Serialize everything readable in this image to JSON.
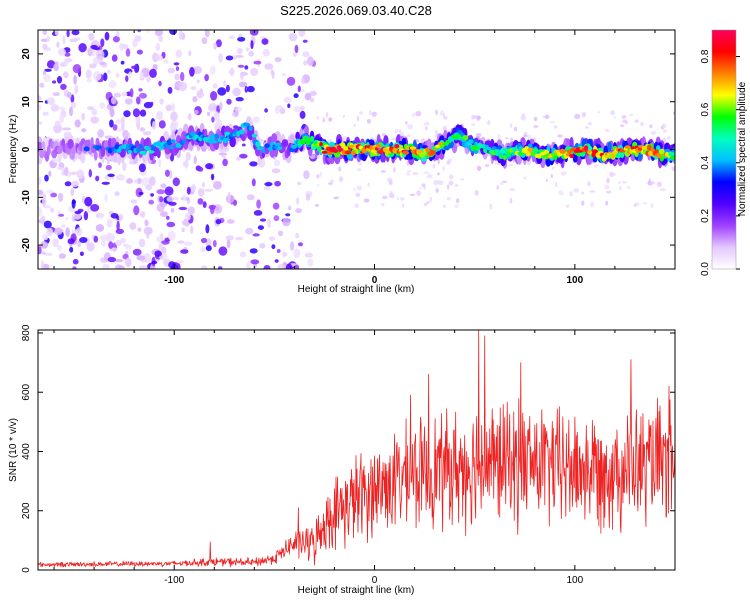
{
  "title": "S225.2026.069.03.40.C28",
  "chart_data": [
    {
      "type": "heatmap",
      "xlabel": "Height of straight line (km)",
      "ylabel": "Frequency (Hz)",
      "xlim": [
        -168,
        150
      ],
      "ylim": [
        -25,
        25
      ],
      "xticks": [
        -100,
        0,
        100
      ],
      "yticks": [
        -20,
        -10,
        0,
        10,
        20
      ],
      "colorbar": {
        "label": "Normalized spectral amplitude",
        "range": [
          0,
          0.9
        ],
        "ticks": [
          "0.0",
          "0.2",
          "0.4",
          "0.6",
          "0.8"
        ],
        "tick_values": [
          0.0,
          0.2,
          0.4,
          0.6,
          0.8
        ],
        "colormap": [
          "#ffffff",
          "#e4c8ff",
          "#a040ff",
          "#5000ff",
          "#0000ff",
          "#00bfff",
          "#00ffbf",
          "#00ff00",
          "#ffff00",
          "#ff8000",
          "#ff0000",
          "#ff0060"
        ]
      },
      "ridge": {
        "x": [
          -168,
          -140,
          -115,
          -100,
          -90,
          -80,
          -70,
          -63,
          -57,
          -50,
          -42,
          -37,
          -33,
          -25,
          -15,
          -5,
          5,
          15,
          25,
          35,
          42,
          48,
          55,
          65,
          75,
          85,
          95,
          105,
          115,
          125,
          135,
          145,
          150
        ],
        "frequency": [
          0,
          0,
          0,
          1,
          3,
          2,
          3,
          5,
          0,
          1,
          0,
          2,
          2,
          0,
          0,
          0,
          0,
          0,
          -1,
          1,
          3,
          1,
          0,
          -1,
          0,
          -1,
          -1,
          0,
          -1,
          0,
          0,
          -1,
          -1
        ],
        "amplitude": [
          0.3,
          0.35,
          0.45,
          0.4,
          0.45,
          0.4,
          0.45,
          0.4,
          0.45,
          0.4,
          0.4,
          0.55,
          0.6,
          0.8,
          0.85,
          0.8,
          0.9,
          0.8,
          0.75,
          0.65,
          0.55,
          0.55,
          0.5,
          0.6,
          0.65,
          0.7,
          0.75,
          0.85,
          0.8,
          0.75,
          0.8,
          0.7,
          0.65
        ]
      },
      "noise_x_end": -30
    },
    {
      "type": "line",
      "xlabel": "Height of straight line (km)",
      "ylabel": "SNR (10 * v/v)",
      "xlim": [
        -168,
        150
      ],
      "ylim": [
        0,
        810
      ],
      "xticks": [
        -100,
        0,
        100
      ],
      "yticks": [
        0,
        200,
        400,
        600,
        800
      ],
      "line_color": "#ee2222",
      "envelope": {
        "x": [
          -168,
          -100,
          -80,
          -60,
          -50,
          -40,
          -30,
          -25,
          -20,
          -10,
          0,
          10,
          20,
          30,
          40,
          50,
          60,
          80,
          100,
          120,
          150
        ],
        "mean": [
          18,
          22,
          28,
          25,
          40,
          90,
          90,
          160,
          190,
          240,
          270,
          300,
          320,
          340,
          340,
          360,
          360,
          360,
          340,
          340,
          360
        ],
        "spread": [
          8,
          10,
          15,
          15,
          20,
          45,
          70,
          90,
          120,
          150,
          160,
          170,
          180,
          190,
          200,
          210,
          210,
          210,
          200,
          200,
          210
        ]
      },
      "peaks": [
        {
          "x": -82,
          "y": 95
        },
        {
          "x": -38,
          "y": 210
        },
        {
          "x": 18,
          "y": 590
        },
        {
          "x": 27,
          "y": 660
        },
        {
          "x": 52,
          "y": 810
        },
        {
          "x": 55,
          "y": 790
        },
        {
          "x": 73,
          "y": 700
        },
        {
          "x": 128,
          "y": 710
        },
        {
          "x": 147,
          "y": 620
        }
      ]
    }
  ]
}
